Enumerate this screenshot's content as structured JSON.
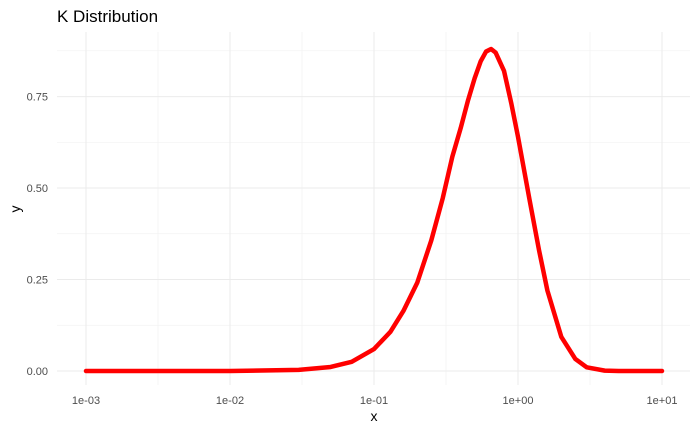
{
  "chart_data": {
    "type": "line",
    "title": "K Distribution",
    "xlabel": "x",
    "ylabel": "y",
    "x_scale": "log10",
    "xlim": [
      0.001,
      10
    ],
    "ylim": [
      0,
      0.88
    ],
    "x_ticks": [
      {
        "value": 0.001,
        "label": "1e-03"
      },
      {
        "value": 0.01,
        "label": "1e-02"
      },
      {
        "value": 0.1,
        "label": "1e-01"
      },
      {
        "value": 1,
        "label": "1e+00"
      },
      {
        "value": 10,
        "label": "1e+01"
      }
    ],
    "y_ticks": [
      {
        "value": 0,
        "label": "0.00"
      },
      {
        "value": 0.25,
        "label": "0.25"
      },
      {
        "value": 0.5,
        "label": "0.50"
      },
      {
        "value": 0.75,
        "label": "0.75"
      }
    ],
    "grid": true,
    "legend": "none",
    "series": [
      {
        "color": "#ff0000",
        "x": [
          0.001,
          0.01,
          0.03,
          0.05,
          0.07,
          0.1,
          0.13,
          0.16,
          0.2,
          0.25,
          0.3,
          0.35,
          0.4,
          0.45,
          0.5,
          0.55,
          0.6,
          0.65,
          0.7,
          0.8,
          0.9,
          1.0,
          1.2,
          1.4,
          1.6,
          2.0,
          2.5,
          3.0,
          4.0,
          5.0,
          7.0,
          10.0
        ],
        "y": [
          0.0,
          0.0,
          0.003,
          0.011,
          0.025,
          0.06,
          0.107,
          0.164,
          0.242,
          0.357,
          0.472,
          0.586,
          0.664,
          0.74,
          0.8,
          0.846,
          0.873,
          0.88,
          0.87,
          0.82,
          0.73,
          0.64,
          0.47,
          0.33,
          0.22,
          0.093,
          0.033,
          0.01,
          0.001,
          0.0,
          0.0,
          0.0
        ]
      }
    ]
  }
}
